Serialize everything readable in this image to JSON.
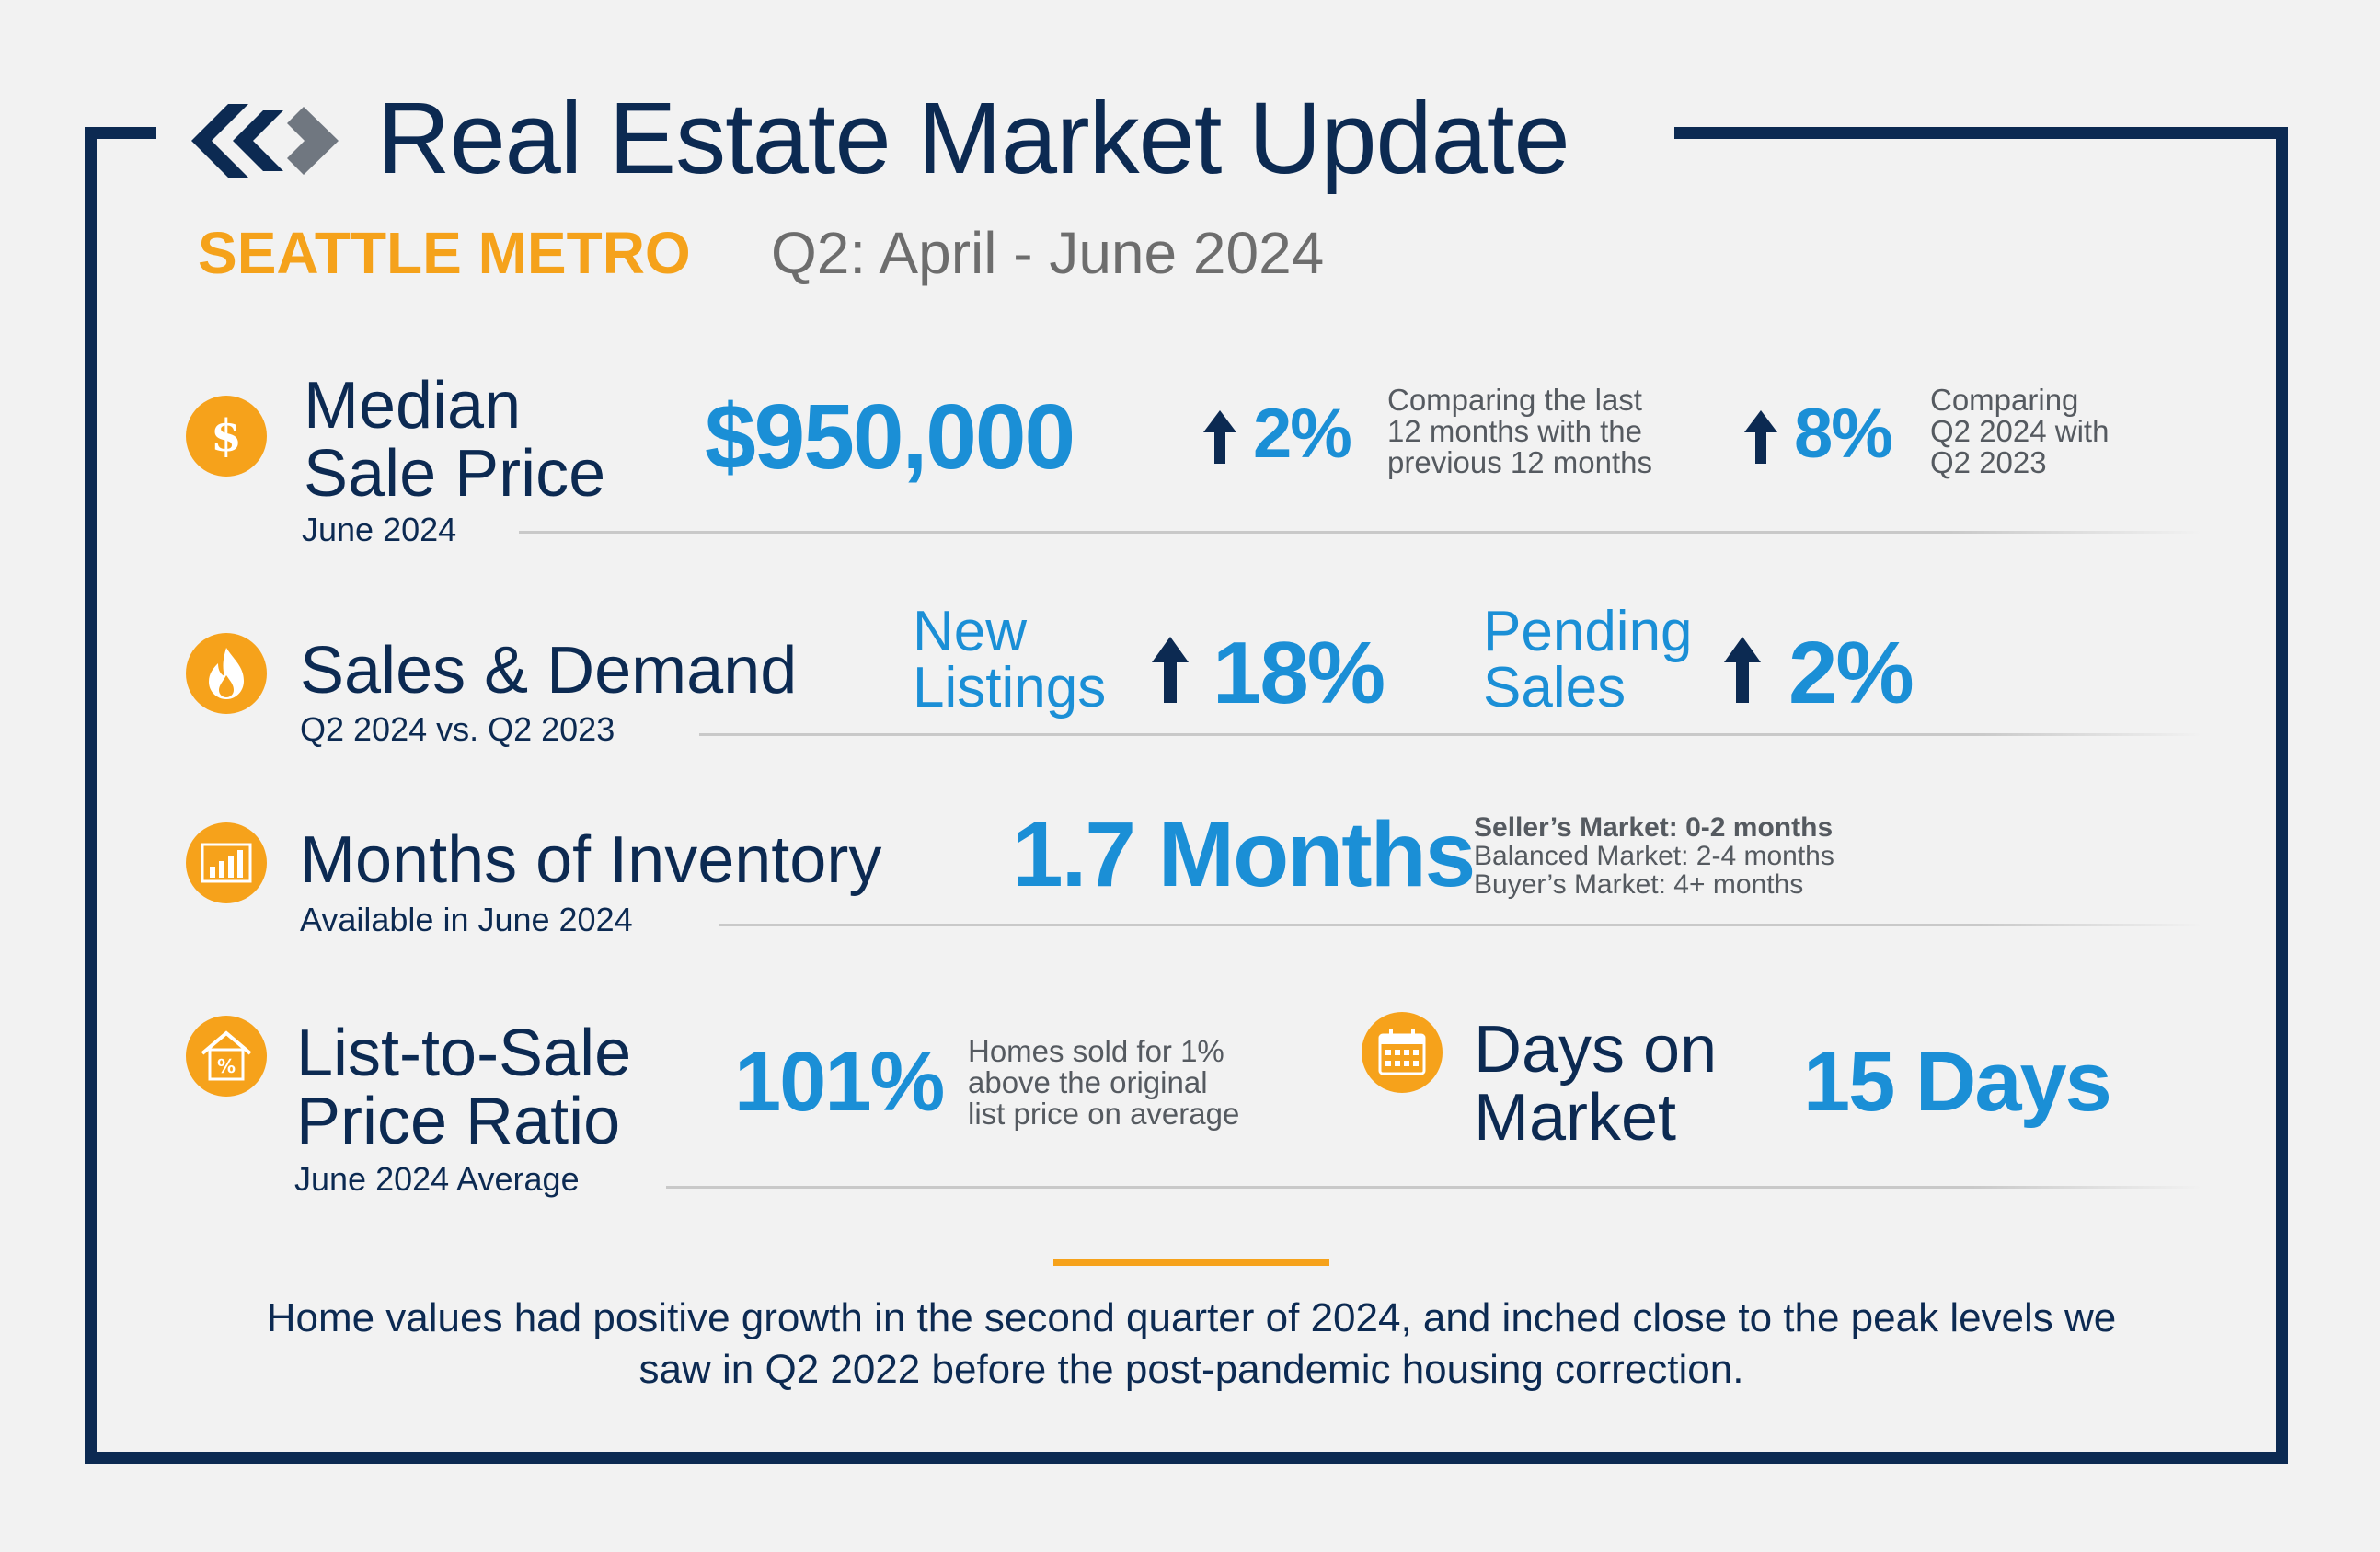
{
  "header": {
    "title": "Real Estate Market Update",
    "region": "SEATTLE METRO",
    "period": "Q2: April - June 2024"
  },
  "median_sale_price": {
    "label_line1": "Median",
    "label_line2": "Sale Price",
    "sub": "June 2024",
    "value": "$950,000",
    "change1": "2%",
    "change1_note": [
      "Comparing the last",
      "12 months with the",
      "previous 12 months"
    ],
    "change2": "8%",
    "change2_note": [
      "Comparing",
      "Q2 2024 with",
      "Q2 2023"
    ]
  },
  "sales_demand": {
    "label": "Sales & Demand",
    "sub": "Q2 2024 vs. Q2 2023",
    "new_listings_label": [
      "New",
      "Listings"
    ],
    "new_listings_change": "18%",
    "pending_label": [
      "Pending",
      "Sales"
    ],
    "pending_change": "2%"
  },
  "inventory": {
    "label": "Months of Inventory",
    "sub": "Available in June 2024",
    "value": "1.7 Months",
    "legend": [
      "Seller’s Market: 0-2 months",
      "Balanced Market: 2-4 months",
      "Buyer’s Market: 4+ months"
    ]
  },
  "list_to_sale": {
    "label_line1": "List-to-Sale",
    "label_line2": "Price Ratio",
    "sub": "June 2024 Average",
    "value": "101%",
    "note": [
      "Homes sold for 1%",
      "above the original",
      "list price on average"
    ]
  },
  "days_on_market": {
    "label_line1": "Days on",
    "label_line2": "Market",
    "value": "15 Days"
  },
  "summary": "Home values had positive growth in the second quarter of 2024, and inched close to the peak levels we saw in Q2 2022 before the post-pandemic housing correction.",
  "colors": {
    "navy": "#0c2a52",
    "blue": "#1b8fd6",
    "orange": "#f6a21b",
    "gray": "#6d6d6d"
  },
  "icons": [
    "logo-icon",
    "dollar-icon",
    "flame-icon",
    "bar-chart-icon",
    "house-percent-icon",
    "calendar-icon",
    "arrow-up-icon"
  ]
}
